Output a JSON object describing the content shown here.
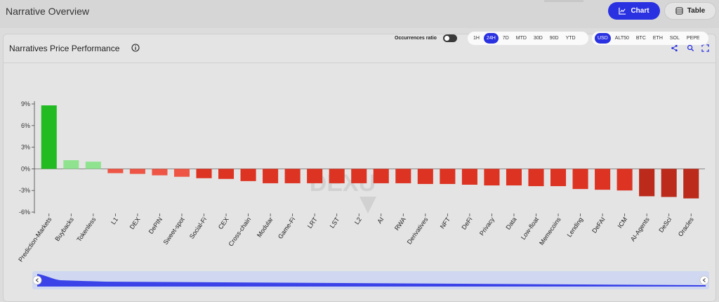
{
  "header": {
    "page_title": "Narrative Overview",
    "chart_btn_label": "Chart",
    "table_btn_label": "Table"
  },
  "card": {
    "title": "Narratives Price Performance",
    "toggle_label": "Occurrences ratio",
    "time_ranges": [
      "1H",
      "24H",
      "7D",
      "MTD",
      "30D",
      "90D",
      "YTD"
    ],
    "time_selected": "24H",
    "currencies": [
      "USD",
      "ALT50",
      "BTC",
      "ETH",
      "SOL",
      "PEPE"
    ],
    "currency_selected": "USD"
  },
  "icons": {
    "chart": "bar-chart-icon",
    "table": "table-icon",
    "info": "info-icon",
    "share": "share-icon",
    "search": "search-icon",
    "fullscreen": "fullscreen-icon"
  },
  "colors": {
    "accent": "#2a31e0",
    "positive_strong": "#22bb22",
    "positive_light": "#8fe38f",
    "negative_light": "#ee5544",
    "negative": "#dd3322",
    "negative_dark": "#bb2a1a"
  },
  "chart_data": {
    "type": "bar",
    "categories": [
      "Prediction-Markets",
      "Buybacks",
      "Tokenless",
      "L1",
      "DEX",
      "DePIN",
      "Sweet-spot",
      "Social-Fi",
      "CEX",
      "Cross-chain",
      "Modular",
      "Game-Fi",
      "LRT",
      "LST",
      "L2",
      "AI",
      "RWA",
      "Derivatives",
      "NFT",
      "DeFi",
      "Privacy",
      "Data",
      "Low-float",
      "Memecoins",
      "Lending",
      "DeFAI",
      "ICM",
      "AI-Agents",
      "DeSci",
      "Oracles"
    ],
    "values": [
      8.8,
      1.2,
      1.0,
      -0.6,
      -0.7,
      -0.9,
      -1.1,
      -1.3,
      -1.4,
      -1.7,
      -2.0,
      -2.0,
      -2.0,
      -2.0,
      -2.0,
      -2.0,
      -2.0,
      -2.1,
      -2.1,
      -2.2,
      -2.3,
      -2.3,
      -2.4,
      -2.4,
      -2.8,
      -2.9,
      -3.0,
      -3.8,
      -3.9,
      -4.1
    ],
    "y_ticks": [
      "9%",
      "6%",
      "3%",
      "0%",
      "-3%",
      "-6%"
    ],
    "ylim": [
      -6,
      9
    ],
    "grid": false,
    "legend": "none",
    "title": "Narratives Price Performance"
  }
}
